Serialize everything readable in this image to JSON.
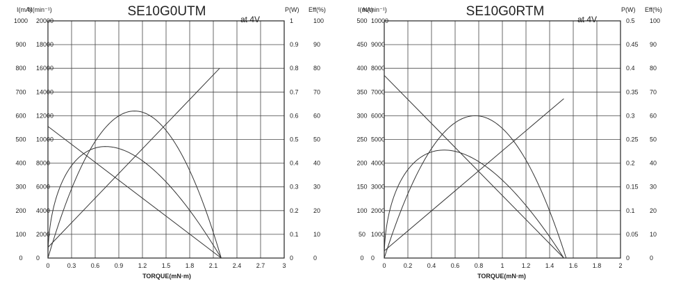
{
  "chart_data": [
    {
      "type": "line",
      "title": "SE10G0UTM",
      "subtitle": "at 4V",
      "xlabel": "TORQUE(mN·m)",
      "x_ticks": [
        "0",
        "0.3",
        "0.6",
        "0.9",
        "1.2",
        "1.5",
        "1.8",
        "2.1",
        "2.4",
        "2.7",
        "3"
      ],
      "xlim": [
        0,
        3
      ],
      "grid": true,
      "left_axes": [
        {
          "label": "I(mA)",
          "range": [
            0,
            1000
          ],
          "ticks": [
            "0",
            "100",
            "200",
            "300",
            "400",
            "500",
            "600",
            "700",
            "800",
            "900",
            "1000"
          ]
        },
        {
          "label": "N(min⁻¹)",
          "range": [
            0,
            20000
          ],
          "ticks": [
            "0",
            "2000",
            "4000",
            "6000",
            "8000",
            "10000",
            "12000",
            "14000",
            "16000",
            "18000",
            "20000"
          ]
        }
      ],
      "right_axes": [
        {
          "label": "P(W)",
          "range": [
            0,
            1
          ],
          "ticks": [
            "0",
            "0.1",
            "0.2",
            "0.3",
            "0.4",
            "0.5",
            "0.6",
            "0.7",
            "0.8",
            "0.9",
            "1"
          ]
        },
        {
          "label": "Eff(%)",
          "range": [
            0,
            100
          ],
          "ticks": [
            "0",
            "10",
            "20",
            "30",
            "40",
            "50",
            "60",
            "70",
            "80",
            "90",
            "100"
          ]
        }
      ],
      "series": [
        {
          "axis": "I",
          "curve": "linear",
          "x": [
            0,
            2.18
          ],
          "y": [
            45,
            800
          ]
        },
        {
          "axis": "N",
          "curve": "linear",
          "x": [
            0,
            2.2
          ],
          "y": [
            11100,
            0
          ]
        },
        {
          "axis": "P",
          "curve": "parabola",
          "x": [
            0,
            1.1,
            2.2
          ],
          "y": [
            0,
            0.62,
            0
          ]
        },
        {
          "axis": "Eff",
          "curve": "efficiency",
          "x": [
            0,
            0.5,
            2.2
          ],
          "y": [
            0,
            45,
            0
          ]
        }
      ]
    },
    {
      "type": "line",
      "title": "SE10G0RTM",
      "subtitle": "at 4V",
      "xlabel": "TORQUE(mN·m)",
      "x_ticks": [
        "0",
        "0.2",
        "0.4",
        "0.6",
        "0.8",
        "1",
        "1.2",
        "1.4",
        "1.6",
        "1.8",
        "2"
      ],
      "xlim": [
        0,
        2
      ],
      "grid": true,
      "left_axes": [
        {
          "label": "I(mA)",
          "range": [
            0,
            500
          ],
          "ticks": [
            "0",
            "50",
            "100",
            "150",
            "200",
            "250",
            "300",
            "350",
            "400",
            "450",
            "500"
          ]
        },
        {
          "label": "N(min⁻¹)",
          "range": [
            0,
            10000
          ],
          "ticks": [
            "0",
            "1000",
            "2000",
            "3000",
            "4000",
            "5000",
            "6000",
            "7000",
            "8000",
            "9000",
            "10000"
          ]
        }
      ],
      "right_axes": [
        {
          "label": "P(W)",
          "range": [
            0,
            0.5
          ],
          "ticks": [
            "0",
            "0.05",
            "0.1",
            "0.15",
            "0.2",
            "0.25",
            "0.3",
            "0.35",
            "0.4",
            "0.45",
            "0.5"
          ]
        },
        {
          "label": "Eff(%)",
          "range": [
            0,
            100
          ],
          "ticks": [
            "0",
            "10",
            "20",
            "30",
            "40",
            "50",
            "60",
            "70",
            "80",
            "90",
            "100"
          ]
        }
      ],
      "series": [
        {
          "axis": "I",
          "curve": "linear",
          "x": [
            0,
            1.52
          ],
          "y": [
            15,
            336
          ]
        },
        {
          "axis": "N",
          "curve": "linear",
          "x": [
            0,
            1.52
          ],
          "y": [
            7700,
            0
          ]
        },
        {
          "axis": "P",
          "curve": "parabola",
          "x": [
            0,
            0.77,
            1.54
          ],
          "y": [
            0,
            0.3,
            0
          ]
        },
        {
          "axis": "Eff",
          "curve": "efficiency",
          "x": [
            0,
            0.42,
            1.52
          ],
          "y": [
            0,
            45,
            0
          ]
        }
      ]
    }
  ]
}
